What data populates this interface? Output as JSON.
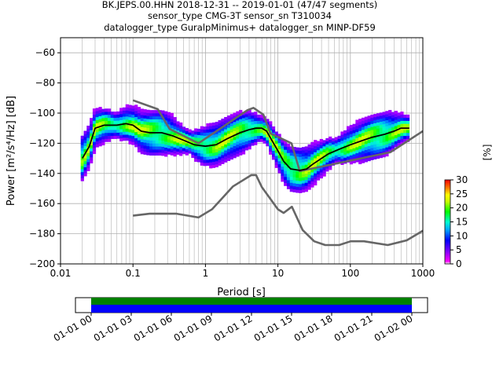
{
  "title_lines": [
    "BK.JEPS.00.HHN   2018-12-31 -- 2019-01-01  (47/47 segments)",
    "sensor_type CMG-3T sensor_sn T310034",
    "datalogger_type GuralpMinimus+ datalogger_sn MINP-DF59"
  ],
  "colorbar": {
    "label": "[%]",
    "ticks": [
      "0",
      "5",
      "10",
      "15",
      "20",
      "25",
      "30"
    ],
    "range": [
      0,
      30
    ]
  },
  "timeline": {
    "ticks": [
      "01-01 00",
      "01-01 03",
      "01-01 06",
      "01-01 09",
      "01-01 12",
      "01-01 15",
      "01-01 18",
      "01-01 21",
      "01-02 00"
    ],
    "colors": [
      "#008000",
      "#0000ff"
    ]
  },
  "chart_data": {
    "type": "heatmap",
    "xlabel": "Period [s]",
    "ylabel": "Power [m²/s⁴/Hz] [dB]",
    "xscale": "log",
    "xlim": [
      0.01,
      1000
    ],
    "ylim": [
      -200,
      -50
    ],
    "xticks": [
      "0.01",
      "0.1",
      "1",
      "10",
      "100",
      "1000"
    ],
    "yticks": [
      "−60",
      "−80",
      "−100",
      "−120",
      "−140",
      "−160",
      "−180",
      "−200"
    ],
    "grid": true,
    "series": [
      {
        "name": "",
        "role": "mode",
        "color": "#000000",
        "x": [
          0.02,
          0.025,
          0.03,
          0.04,
          0.06,
          0.08,
          0.1,
          0.13,
          0.17,
          0.25,
          0.35,
          0.5,
          0.7,
          1.0,
          1.4,
          2.0,
          3.0,
          4.0,
          5.0,
          6.0,
          7.0,
          8.0,
          10.0,
          12.0,
          15.0,
          20.0,
          25.0,
          30.0,
          40.0,
          50.0,
          70.0,
          100.0,
          150.0,
          200.0,
          300.0,
          400.0,
          500.0,
          650.0
        ],
        "y": [
          -130,
          -122,
          -110,
          -108,
          -108,
          -107,
          -108,
          -112,
          -113,
          -113,
          -115,
          -118,
          -121,
          -122,
          -121,
          -117,
          -113,
          -111,
          -110,
          -110,
          -112,
          -117,
          -125,
          -132,
          -137,
          -138,
          -137,
          -134,
          -130,
          -127,
          -124,
          -121,
          -118,
          -116,
          -114,
          -112,
          -110,
          -110
        ]
      },
      {
        "name": "",
        "role": "NHNM",
        "color": "#666666",
        "x": [
          0.1,
          0.22,
          0.32,
          0.8,
          3.8,
          4.6,
          6.3,
          7.9,
          15.4,
          20.0,
          354.8,
          1000.0
        ],
        "y": [
          -91.5,
          -97.4,
          -110.5,
          -120.0,
          -98.0,
          -96.5,
          -101.0,
          -113.5,
          -120.0,
          -138.5,
          -126.0,
          -112.0
        ]
      },
      {
        "name": "",
        "role": "NLNM",
        "color": "#666666",
        "x": [
          0.1,
          0.17,
          0.4,
          0.8,
          1.24,
          2.4,
          4.3,
          5.0,
          6.0,
          10.0,
          12.0,
          15.6,
          21.9,
          31.6,
          45.0,
          70.0,
          101.0,
          154.0,
          328.0,
          600.0,
          1000.0
        ],
        "y": [
          -168.0,
          -166.7,
          -166.7,
          -169.2,
          -163.7,
          -148.6,
          -141.1,
          -141.1,
          -149.0,
          -163.8,
          -166.2,
          -162.1,
          -177.5,
          -185.0,
          -187.5,
          -187.5,
          -185.0,
          -185.0,
          -187.5,
          -184.4,
          -178.0
        ]
      }
    ]
  }
}
